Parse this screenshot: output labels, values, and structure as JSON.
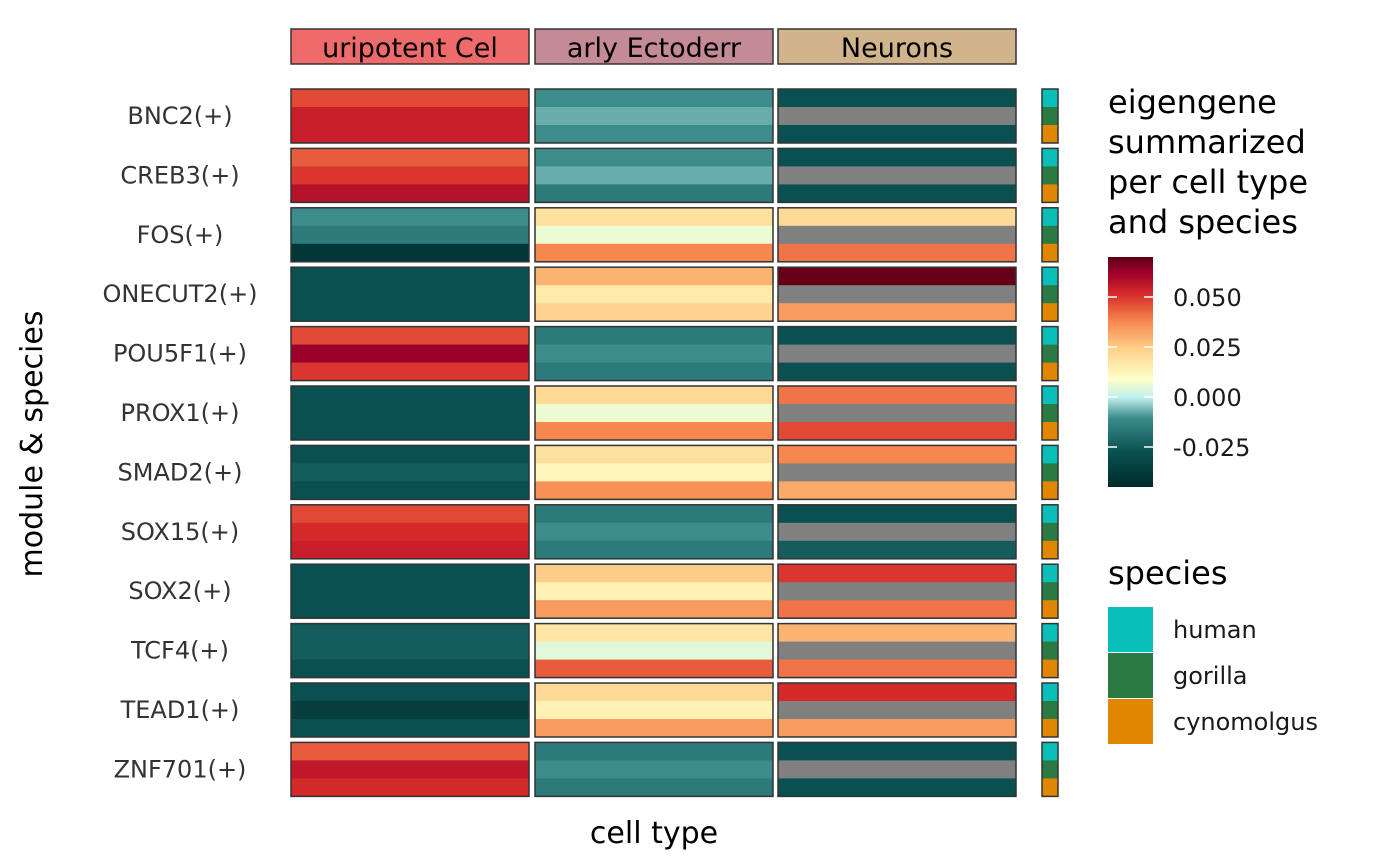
{
  "chart_data": {
    "type": "heatmap",
    "xlabel": "cell type",
    "ylabel": "module & species",
    "columns": [
      "uripotent  Cel",
      "arly  Ectoderr",
      "Neurons"
    ],
    "column_colors": [
      "#ef6b6b",
      "#c48a95",
      "#d2b48c"
    ],
    "rows": [
      "BNC2(+)",
      "CREB3(+)",
      "FOS(+)",
      "ONECUT2(+)",
      "POU5F1(+)",
      "PROX1(+)",
      "SMAD2(+)",
      "SOX15(+)",
      "SOX2(+)",
      "TCF4(+)",
      "TEAD1(+)",
      "ZNF701(+)"
    ],
    "species": [
      {
        "name": "human",
        "color": "#0abfb8"
      },
      {
        "name": "gorilla",
        "color": "#2c7a43"
      },
      {
        "name": "cynomolgus",
        "color": "#e08600"
      }
    ],
    "colorbar": {
      "title_lines": [
        "eigengene",
        "summarized",
        "per cell type",
        "and species"
      ],
      "range": [
        -0.045,
        0.07
      ],
      "ticks": [
        0.05,
        0.025,
        0.0,
        -0.025
      ],
      "tick_labels": [
        "0.050",
        "0.025",
        "0.000",
        "-0.025"
      ]
    },
    "missing_color": "#808080",
    "values": [
      [
        [
          0.04,
          0.048,
          0.048
        ],
        [
          -0.025,
          -0.02,
          -0.025
        ],
        [
          -0.035,
          null,
          -0.035
        ]
      ],
      [
        [
          0.037,
          0.043,
          0.052
        ],
        [
          -0.025,
          -0.02,
          -0.028
        ],
        [
          -0.035,
          null,
          -0.035
        ]
      ],
      [
        [
          -0.025,
          -0.028,
          -0.042
        ],
        [
          0.01,
          -0.003,
          0.03
        ],
        [
          0.012,
          null,
          0.033
        ]
      ],
      [
        [
          -0.035,
          -0.035,
          -0.035
        ],
        [
          0.021,
          0.007,
          0.014
        ],
        [
          0.068,
          null,
          0.026
        ]
      ],
      [
        [
          0.04,
          0.058,
          0.043
        ],
        [
          -0.028,
          -0.025,
          -0.028
        ],
        [
          -0.035,
          null,
          -0.035
        ]
      ],
      [
        [
          -0.035,
          -0.035,
          -0.035
        ],
        [
          0.012,
          -0.003,
          0.03
        ],
        [
          0.033,
          null,
          0.04
        ]
      ],
      [
        [
          -0.035,
          -0.033,
          -0.035
        ],
        [
          0.01,
          0.003,
          0.028
        ],
        [
          0.03,
          null,
          0.023
        ]
      ],
      [
        [
          0.04,
          0.045,
          0.048
        ],
        [
          -0.028,
          -0.025,
          -0.028
        ],
        [
          -0.035,
          null,
          -0.033
        ]
      ],
      [
        [
          -0.035,
          -0.035,
          -0.035
        ],
        [
          0.016,
          0.005,
          0.026
        ],
        [
          0.043,
          null,
          0.033
        ]
      ],
      [
        [
          -0.033,
          -0.033,
          -0.035
        ],
        [
          0.008,
          -0.005,
          0.037
        ],
        [
          0.021,
          null,
          0.033
        ]
      ],
      [
        [
          -0.035,
          -0.04,
          -0.035
        ],
        [
          0.012,
          0.005,
          0.026
        ],
        [
          0.045,
          null,
          0.026
        ]
      ],
      [
        [
          0.037,
          0.05,
          0.045
        ],
        [
          -0.028,
          -0.025,
          -0.028
        ],
        [
          -0.035,
          null,
          -0.035
        ]
      ]
    ]
  },
  "legend": {
    "species_title": "species"
  }
}
